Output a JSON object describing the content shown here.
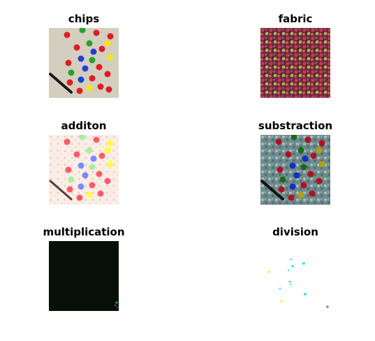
{
  "figure": {
    "panels": [
      {
        "id": "chips",
        "title": "chips",
        "image": "chips-photo"
      },
      {
        "id": "fabric",
        "title": "fabric",
        "image": "fabric-texture"
      },
      {
        "id": "addition",
        "title": "additon",
        "image": "addition-result"
      },
      {
        "id": "subtraction",
        "title": "substraction",
        "image": "subtraction-result"
      },
      {
        "id": "multiplication",
        "title": "multiplication",
        "image": "multiplication-result"
      },
      {
        "id": "division",
        "title": "division",
        "image": "division-result"
      }
    ]
  }
}
